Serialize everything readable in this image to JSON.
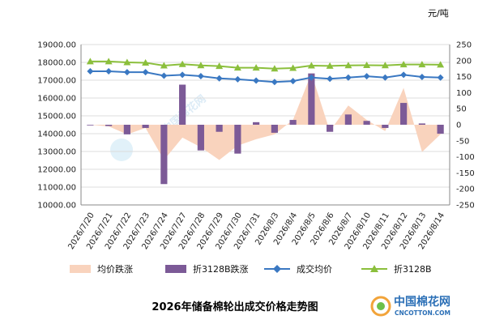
{
  "chart_data": {
    "type": "combo",
    "title": "2026年储备棉轮出成交价格走势图",
    "right_axis_unit": "元/吨",
    "categories": [
      "2026/7/20",
      "2026/7/21",
      "2026/7/22",
      "2026/7/23",
      "2026/7/24",
      "2026/7/27",
      "2026/7/28",
      "2026/7/29",
      "2026/7/30",
      "2026/7/31",
      "2026/8/3",
      "2026/8/4",
      "2026/8/5",
      "2026/8/6",
      "2026/8/7",
      "2026/8/10",
      "2026/8/11",
      "2026/8/12",
      "2026/8/13",
      "2026/8/14"
    ],
    "left_axis": {
      "min": 10000,
      "max": 19000,
      "step": 1000,
      "ticks": [
        "10000.00",
        "11000.00",
        "12000.00",
        "13000.00",
        "14000.00",
        "15000.00",
        "16000.00",
        "17000.00",
        "18000.00",
        "19000.00"
      ]
    },
    "right_axis": {
      "min": -250,
      "max": 250,
      "step": 50,
      "ticks": [
        "-250",
        "-200",
        "-150",
        "-100",
        "-50",
        "0",
        "50",
        "100",
        "150",
        "200",
        "250"
      ]
    },
    "legend_position": "bottom",
    "series": [
      {
        "name": "均价跌涨",
        "type": "area",
        "axis": "right",
        "color": "#f9d3bd",
        "values": [
          0,
          -5,
          -30,
          -10,
          -110,
          -40,
          -70,
          -110,
          -65,
          -45,
          -30,
          15,
          160,
          -20,
          60,
          15,
          -20,
          115,
          -85,
          -30
        ]
      },
      {
        "name": "折3128B跌涨",
        "type": "bar",
        "axis": "right",
        "color": "#7c5a97",
        "values": [
          0,
          -4,
          -30,
          -10,
          -185,
          125,
          -80,
          -22,
          -90,
          8,
          -25,
          15,
          160,
          -22,
          32,
          12,
          -10,
          68,
          4,
          -28
        ]
      },
      {
        "name": "成交均价",
        "type": "line",
        "axis": "left",
        "color": "#3a78c2",
        "values": [
          17500,
          17500,
          17450,
          17450,
          17250,
          17300,
          17230,
          17100,
          17050,
          16980,
          16900,
          16950,
          17150,
          17080,
          17150,
          17220,
          17150,
          17300,
          17180,
          17150
        ]
      },
      {
        "name": "折3128B",
        "type": "line",
        "axis": "left",
        "color": "#8bbf3c",
        "values": [
          18050,
          18050,
          18000,
          17980,
          17820,
          17900,
          17830,
          17790,
          17700,
          17700,
          17650,
          17680,
          17820,
          17800,
          17830,
          17840,
          17830,
          17880,
          17880,
          17870
        ]
      }
    ]
  },
  "brand": {
    "name": "中国棉花网",
    "url": "CNCOTTON.COM"
  }
}
